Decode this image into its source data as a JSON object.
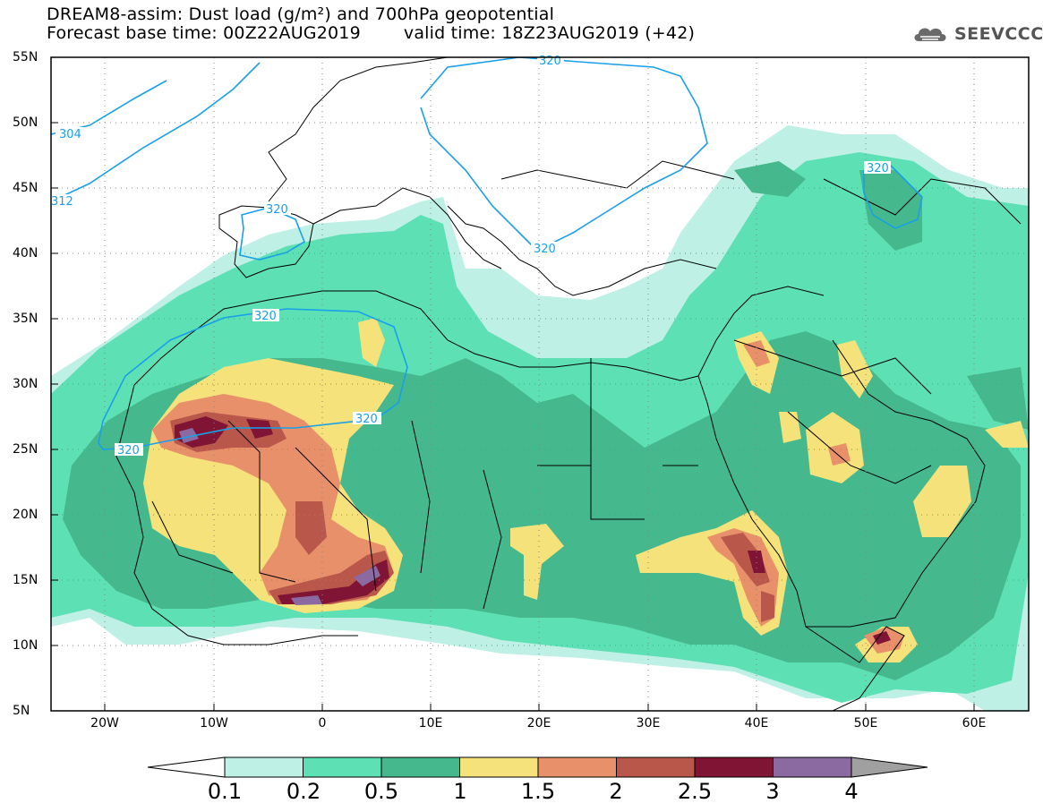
{
  "header": {
    "title_line1": "DREAM8-assim: Dust load (g/m²) and 700hPa geopotential",
    "base_time": "Forecast base time: 00Z22AUG2019",
    "valid_time": "valid time: 18Z23AUG2019 (+42)"
  },
  "logo": {
    "text": "SEEVCCC",
    "icon": "cloud-logo-icon"
  },
  "map": {
    "lat_labels": [
      "55N",
      "50N",
      "45N",
      "40N",
      "35N",
      "30N",
      "25N",
      "20N",
      "15N",
      "10N",
      "5N"
    ],
    "lon_labels": [
      "20W",
      "10W",
      "0",
      "10E",
      "20E",
      "30E",
      "40E",
      "50E",
      "60E"
    ],
    "lat_range": [
      5,
      55
    ],
    "lon_range": [
      -25,
      65
    ],
    "contour_labels": [
      "304",
      "312",
      "320",
      "320",
      "320",
      "320",
      "320",
      "320",
      "320"
    ],
    "grid": "dotted"
  },
  "colorbar": {
    "labels": [
      "0.1",
      "0.2",
      "0.5",
      "1",
      "1.5",
      "2",
      "2.5",
      "3",
      "4"
    ],
    "colors": [
      "#ffffff",
      "#bff0e5",
      "#5ee0b5",
      "#45b88d",
      "#f5e27a",
      "#e8906a",
      "#b9584a",
      "#7f1434",
      "#8a6aa0",
      "#a0a0a0"
    ]
  }
}
